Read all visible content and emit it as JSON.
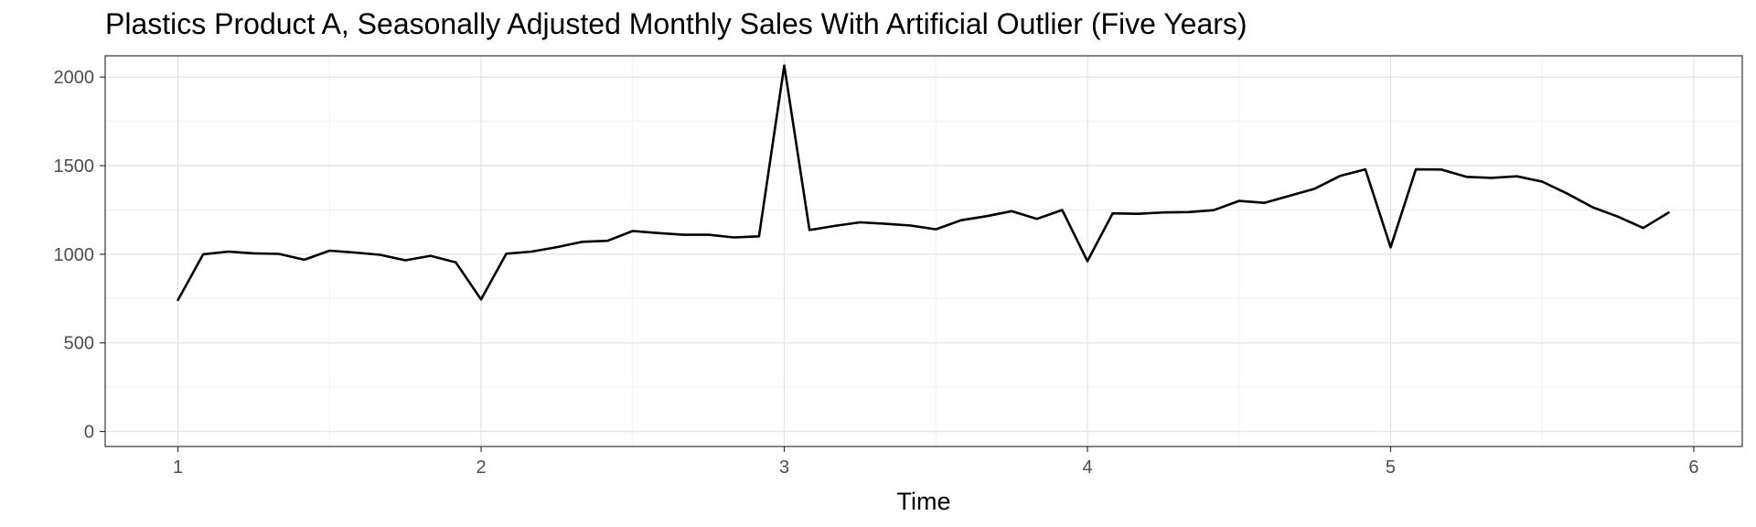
{
  "chart_data": {
    "type": "line",
    "title": "Plastics Product A, Seasonally Adjusted Monthly Sales With Artificial Outlier (Five Years)",
    "xlabel": "Time",
    "ylabel": "",
    "xlim": [
      0.76,
      6.16
    ],
    "ylim": [
      -85,
      2120
    ],
    "x_ticks": [
      1,
      2,
      3,
      4,
      5,
      6
    ],
    "y_ticks": [
      0,
      500,
      1000,
      1500,
      2000
    ],
    "grid": true,
    "line_color": "#000000",
    "x": [
      1.0,
      1.0833,
      1.1667,
      1.25,
      1.3333,
      1.4167,
      1.5,
      1.5833,
      1.6667,
      1.75,
      1.8333,
      1.9167,
      2.0,
      2.0833,
      2.1667,
      2.25,
      2.3333,
      2.4167,
      2.5,
      2.5833,
      2.6667,
      2.75,
      2.8333,
      2.9167,
      3.0,
      3.0833,
      3.1667,
      3.25,
      3.3333,
      3.4167,
      3.5,
      3.5833,
      3.6667,
      3.75,
      3.8333,
      3.9167,
      4.0,
      4.0833,
      4.1667,
      4.25,
      4.3333,
      4.4167,
      4.5,
      4.5833,
      4.6667,
      4.75,
      4.8333,
      4.9167,
      5.0,
      5.0833,
      5.1667,
      5.25,
      5.3333,
      5.4167,
      5.5,
      5.5833,
      5.6667,
      5.75,
      5.8333,
      5.9167
    ],
    "values": [
      742,
      1000,
      1015,
      1005,
      1002,
      969,
      1020,
      1010,
      997,
      966,
      991,
      954,
      745,
      1003,
      1015,
      1040,
      1070,
      1076,
      1131,
      1120,
      1110,
      1110,
      1095,
      1101,
      2065,
      1137,
      1160,
      1180,
      1172,
      1162,
      1141,
      1192,
      1215,
      1243,
      1200,
      1250,
      961,
      1231,
      1228,
      1236,
      1238,
      1249,
      1301,
      1290,
      1330,
      1370,
      1442,
      1479,
      1039,
      1479,
      1478,
      1437,
      1431,
      1440,
      1410,
      1342,
      1265,
      1212,
      1148,
      1235
    ]
  }
}
